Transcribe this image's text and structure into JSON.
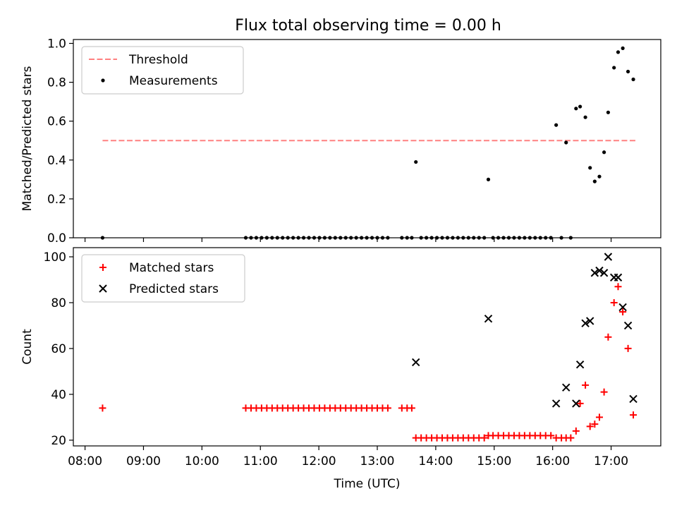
{
  "figure_title": "Flux total observing time = 0.00 h",
  "chart_data": [
    {
      "type": "scatter",
      "panel": "top",
      "title": "Flux total observing time = 0.00 h",
      "xlabel": "",
      "ylabel": "Matched/Predicted stars",
      "xlim": [
        7.8,
        17.85
      ],
      "ylim": [
        0,
        1.02
      ],
      "xticks": [
        8,
        9,
        10,
        11,
        12,
        13,
        14,
        15,
        16,
        17
      ],
      "xtick_labels": [
        "08:00",
        "09:00",
        "10:00",
        "11:00",
        "12:00",
        "13:00",
        "14:00",
        "15:00",
        "16:00",
        "17:00"
      ],
      "yticks": [
        0.0,
        0.2,
        0.4,
        0.6,
        0.8,
        1.0
      ],
      "ytick_labels": [
        "0.0",
        "0.2",
        "0.4",
        "0.6",
        "0.8",
        "1.0"
      ],
      "legend": {
        "placement": "upper-left",
        "entries": [
          "Threshold",
          "Measurements"
        ]
      },
      "threshold": {
        "name": "Threshold",
        "value": 0.5,
        "x_range": [
          8.3,
          17.42
        ],
        "color": "#ff8080"
      },
      "series": [
        {
          "name": "Measurements",
          "color": "#000000",
          "x": [
            8.3,
            10.75,
            10.84,
            10.93,
            11.02,
            11.11,
            11.2,
            11.29,
            11.38,
            11.47,
            11.56,
            11.65,
            11.74,
            11.83,
            11.92,
            12.01,
            12.1,
            12.19,
            12.28,
            12.37,
            12.46,
            12.55,
            12.64,
            12.73,
            12.82,
            12.91,
            13.0,
            13.09,
            13.18,
            13.42,
            13.51,
            13.59,
            13.66,
            13.75,
            13.84,
            13.93,
            14.02,
            14.11,
            14.2,
            14.29,
            14.38,
            14.47,
            14.56,
            14.65,
            14.74,
            14.83,
            14.9,
            14.98,
            15.07,
            15.16,
            15.25,
            15.34,
            15.43,
            15.52,
            15.61,
            15.7,
            15.79,
            15.88,
            15.97,
            16.06,
            16.15,
            16.23,
            16.31,
            16.4,
            16.47,
            16.56,
            16.64,
            16.72,
            16.8,
            16.88,
            16.95,
            17.05,
            17.12,
            17.2,
            17.29,
            17.38
          ],
          "y": [
            0.0,
            0.0,
            0.0,
            0.0,
            0.0,
            0.0,
            0.0,
            0.0,
            0.0,
            0.0,
            0.0,
            0.0,
            0.0,
            0.0,
            0.0,
            0.0,
            0.0,
            0.0,
            0.0,
            0.0,
            0.0,
            0.0,
            0.0,
            0.0,
            0.0,
            0.0,
            0.0,
            0.0,
            0.0,
            0.0,
            0.0,
            0.0,
            0.39,
            0.0,
            0.0,
            0.0,
            0.0,
            0.0,
            0.0,
            0.0,
            0.0,
            0.0,
            0.0,
            0.0,
            0.0,
            0.0,
            0.3,
            0.0,
            0.0,
            0.0,
            0.0,
            0.0,
            0.0,
            0.0,
            0.0,
            0.0,
            0.0,
            0.0,
            0.0,
            0.58,
            0.0,
            0.49,
            0.0,
            0.665,
            0.675,
            0.62,
            0.36,
            0.29,
            0.315,
            0.44,
            0.645,
            0.875,
            0.955,
            0.975,
            0.855,
            0.815
          ]
        }
      ]
    },
    {
      "type": "scatter",
      "panel": "bottom",
      "title": "",
      "xlabel": "Time (UTC)",
      "ylabel": "Count",
      "xlim": [
        7.8,
        17.85
      ],
      "ylim": [
        17.5,
        104
      ],
      "xticks": [
        8,
        9,
        10,
        11,
        12,
        13,
        14,
        15,
        16,
        17
      ],
      "xtick_labels": [
        "08:00",
        "09:00",
        "10:00",
        "11:00",
        "12:00",
        "13:00",
        "14:00",
        "15:00",
        "16:00",
        "17:00"
      ],
      "yticks": [
        20,
        40,
        60,
        80,
        100
      ],
      "ytick_labels": [
        "20",
        "40",
        "60",
        "80",
        "100"
      ],
      "legend": {
        "placement": "upper-left",
        "entries": [
          "Matched stars",
          "Predicted stars"
        ]
      },
      "series": [
        {
          "name": "Matched stars",
          "marker": "plus",
          "color": "#ff0000",
          "x": [
            8.3,
            10.75,
            10.84,
            10.93,
            11.02,
            11.11,
            11.2,
            11.29,
            11.38,
            11.47,
            11.56,
            11.65,
            11.74,
            11.83,
            11.92,
            12.01,
            12.1,
            12.19,
            12.28,
            12.37,
            12.46,
            12.55,
            12.64,
            12.73,
            12.82,
            12.91,
            13.0,
            13.09,
            13.18,
            13.42,
            13.51,
            13.59,
            13.66,
            13.75,
            13.84,
            13.93,
            14.02,
            14.11,
            14.2,
            14.29,
            14.38,
            14.47,
            14.56,
            14.65,
            14.74,
            14.83,
            14.9,
            14.98,
            15.07,
            15.16,
            15.25,
            15.34,
            15.43,
            15.52,
            15.61,
            15.7,
            15.79,
            15.88,
            15.97,
            16.06,
            16.15,
            16.23,
            16.31,
            16.4,
            16.47,
            16.56,
            16.64,
            16.72,
            16.8,
            16.88,
            16.95,
            17.05,
            17.12,
            17.2,
            17.29,
            17.38
          ],
          "y": [
            34,
            34,
            34,
            34,
            34,
            34,
            34,
            34,
            34,
            34,
            34,
            34,
            34,
            34,
            34,
            34,
            34,
            34,
            34,
            34,
            34,
            34,
            34,
            34,
            34,
            34,
            34,
            34,
            34,
            34,
            34,
            34,
            21,
            21,
            21,
            21,
            21,
            21,
            21,
            21,
            21,
            21,
            21,
            21,
            21,
            21,
            22,
            22,
            22,
            22,
            22,
            22,
            22,
            22,
            22,
            22,
            22,
            22,
            22,
            21,
            21,
            21,
            21,
            24,
            36,
            44,
            26,
            27,
            30,
            41,
            65,
            80,
            87,
            76,
            60,
            31
          ]
        },
        {
          "name": "Predicted stars",
          "marker": "x",
          "color": "#000000",
          "x": [
            13.66,
            14.9,
            16.06,
            16.23,
            16.4,
            16.47,
            16.56,
            16.64,
            16.72,
            16.8,
            16.88,
            16.95,
            17.05,
            17.12,
            17.2,
            17.29,
            17.38
          ],
          "y": [
            54,
            73,
            36,
            43,
            36,
            53,
            71,
            72,
            93,
            94,
            93,
            100,
            91,
            91,
            78,
            70,
            38
          ]
        }
      ]
    }
  ]
}
